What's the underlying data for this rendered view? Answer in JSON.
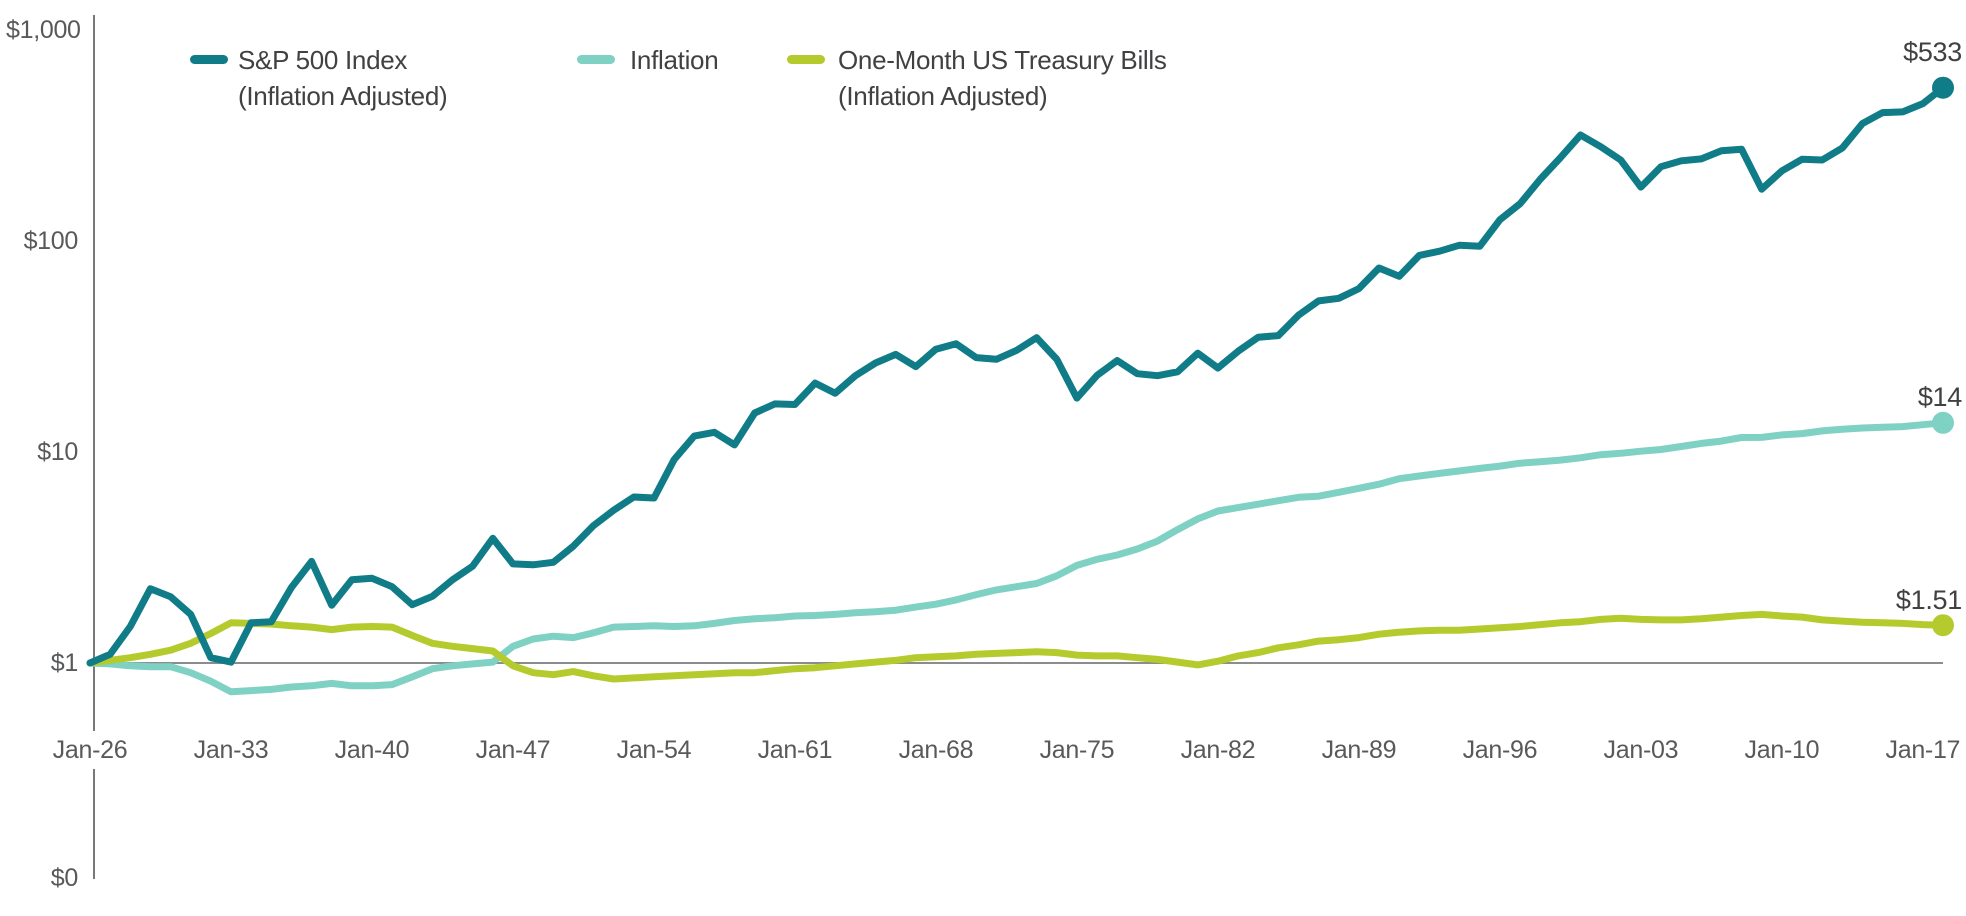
{
  "chart_data": {
    "type": "line",
    "title": "",
    "y_scale": "log",
    "x_start_year": 1926,
    "x_end_year": 2018,
    "x_tick_years": [
      1926,
      1933,
      1940,
      1947,
      1954,
      1961,
      1968,
      1975,
      1982,
      1989,
      1996,
      2003,
      2010,
      2017
    ],
    "x_tick_labels": [
      "Jan-26",
      "Jan-33",
      "Jan-40",
      "Jan-47",
      "Jan-54",
      "Jan-61",
      "Jan-68",
      "Jan-75",
      "Jan-82",
      "Jan-89",
      "Jan-96",
      "Jan-03",
      "Jan-10",
      "Jan-17"
    ],
    "y_ticks": [
      {
        "label": "$1,000",
        "value": 1000
      },
      {
        "label": "$100",
        "value": 100
      },
      {
        "label": "$10",
        "value": 10
      },
      {
        "label": "$1",
        "value": 1
      },
      {
        "label": "$0",
        "value": 0
      }
    ],
    "baseline_value": 1,
    "legend_position": "top",
    "grid": "off",
    "colors": {
      "axis": "#77787B",
      "baseline_rule": "#8A8C8E",
      "tick_text": "#58595B",
      "label_text": "#414042"
    },
    "series": [
      {
        "name": "S&P 500 Index (Inflation Adjusted)",
        "legend_lines": [
          "S&P 500 Index",
          "(Inflation Adjusted)"
        ],
        "color": "#107C87",
        "end_label": "$533",
        "end_value": 533,
        "values": [
          1.0,
          1.1,
          1.49,
          2.25,
          2.06,
          1.7,
          1.06,
          1.01,
          1.55,
          1.57,
          2.28,
          3.03,
          1.88,
          2.48,
          2.52,
          2.3,
          1.89,
          2.07,
          2.48,
          2.88,
          3.9,
          2.95,
          2.92,
          3.0,
          3.58,
          4.48,
          5.3,
          6.12,
          6.05,
          9.2,
          11.9,
          12.4,
          10.8,
          15.3,
          16.9,
          16.8,
          21.2,
          19.0,
          23.0,
          26.4,
          29.0,
          25.4,
          30.7,
          32.6,
          28.0,
          27.5,
          30.3,
          34.8,
          27.5,
          18.0,
          23.1,
          27.1,
          23.5,
          23.0,
          24.0,
          29.4,
          25.0,
          30.0,
          35.0,
          35.6,
          44.5,
          52.0,
          53.5,
          59.5,
          74.5,
          68.0,
          85.5,
          89.5,
          95.5,
          94.5,
          126,
          150,
          196,
          248,
          318,
          280,
          242,
          180,
          225,
          240,
          245,
          268,
          272,
          176,
          215,
          244,
          242,
          276,
          360,
          406,
          409,
          448,
          533
        ]
      },
      {
        "name": "Inflation",
        "legend_lines": [
          "Inflation"
        ],
        "color": "#7FD1C3",
        "end_label": "$14",
        "end_value": 13.75,
        "values": [
          1.0,
          0.99,
          0.97,
          0.96,
          0.96,
          0.9,
          0.82,
          0.73,
          0.74,
          0.75,
          0.77,
          0.78,
          0.8,
          0.78,
          0.78,
          0.79,
          0.86,
          0.94,
          0.97,
          0.99,
          1.01,
          1.2,
          1.3,
          1.34,
          1.32,
          1.39,
          1.48,
          1.49,
          1.5,
          1.49,
          1.5,
          1.54,
          1.59,
          1.62,
          1.64,
          1.67,
          1.68,
          1.7,
          1.73,
          1.75,
          1.78,
          1.84,
          1.9,
          1.99,
          2.11,
          2.22,
          2.3,
          2.38,
          2.59,
          2.9,
          3.1,
          3.25,
          3.47,
          3.78,
          4.29,
          4.82,
          5.25,
          5.45,
          5.66,
          5.88,
          6.1,
          6.17,
          6.44,
          6.73,
          7.04,
          7.47,
          7.7,
          7.92,
          8.14,
          8.36,
          8.57,
          8.85,
          9.0,
          9.15,
          9.39,
          9.71,
          9.86,
          10.09,
          10.28,
          10.62,
          10.98,
          11.26,
          11.72,
          11.73,
          12.05,
          12.23,
          12.59,
          12.81,
          13.0,
          13.1,
          13.19,
          13.47,
          13.75
        ]
      },
      {
        "name": "One-Month US Treasury Bills (Inflation Adjusted)",
        "legend_lines": [
          "One-Month US Treasury Bills",
          "(Inflation Adjusted)"
        ],
        "color": "#B5CB2D",
        "end_label": "$1.51",
        "end_value": 1.51,
        "values": [
          1.0,
          1.03,
          1.06,
          1.1,
          1.15,
          1.24,
          1.38,
          1.55,
          1.54,
          1.53,
          1.5,
          1.48,
          1.44,
          1.48,
          1.49,
          1.48,
          1.35,
          1.24,
          1.2,
          1.17,
          1.14,
          0.97,
          0.9,
          0.88,
          0.91,
          0.87,
          0.84,
          0.85,
          0.86,
          0.87,
          0.88,
          0.89,
          0.9,
          0.9,
          0.92,
          0.94,
          0.95,
          0.97,
          0.99,
          1.01,
          1.03,
          1.06,
          1.07,
          1.08,
          1.1,
          1.11,
          1.12,
          1.13,
          1.12,
          1.09,
          1.08,
          1.08,
          1.06,
          1.04,
          1.01,
          0.98,
          1.02,
          1.08,
          1.12,
          1.18,
          1.22,
          1.27,
          1.29,
          1.32,
          1.37,
          1.4,
          1.42,
          1.43,
          1.43,
          1.45,
          1.47,
          1.49,
          1.52,
          1.55,
          1.57,
          1.61,
          1.63,
          1.61,
          1.6,
          1.6,
          1.62,
          1.65,
          1.68,
          1.7,
          1.67,
          1.65,
          1.6,
          1.58,
          1.56,
          1.55,
          1.54,
          1.52,
          1.51
        ]
      }
    ]
  }
}
